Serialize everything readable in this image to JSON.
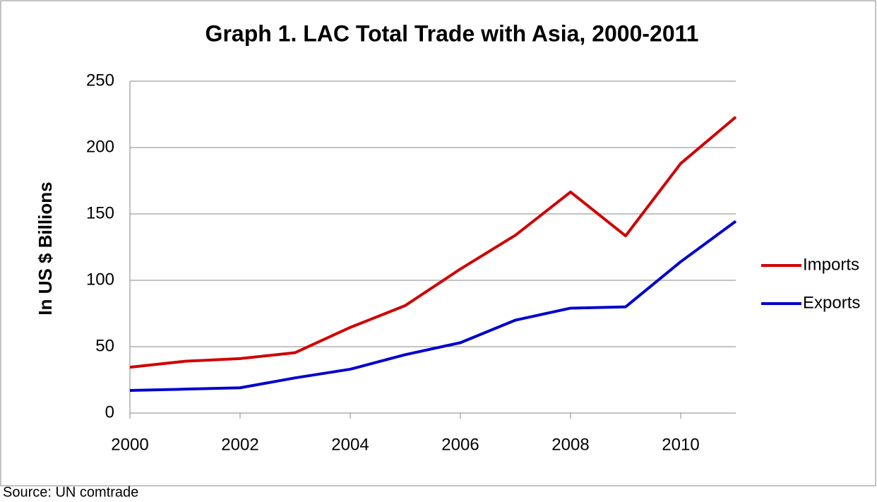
{
  "chart_data": {
    "type": "line",
    "title": "Graph 1. LAC Total Trade with Asia, 2000-2011",
    "y_label": "In US $ Billions",
    "source": "Source: UN comtrade",
    "x": [
      2000,
      2001,
      2002,
      2003,
      2004,
      2005,
      2006,
      2007,
      2008,
      2009,
      2010,
      2011
    ],
    "series": [
      {
        "name": "Imports",
        "color": "#d00000",
        "values": [
          34.5,
          39,
          41,
          45.5,
          64.5,
          81,
          108.5,
          134,
          166.5,
          133.5,
          188,
          223
        ]
      },
      {
        "name": "Exports",
        "color": "#0000cc",
        "values": [
          17,
          18,
          19,
          26.5,
          33,
          44,
          53,
          70,
          79,
          80,
          114,
          144.5
        ]
      }
    ],
    "xlim": [
      2000,
      2011
    ],
    "xticks": [
      2000,
      2002,
      2004,
      2006,
      2008,
      2010
    ],
    "ylim": [
      0,
      250
    ],
    "yticks": [
      0,
      50,
      100,
      150,
      200,
      250
    ],
    "grid": true,
    "legend": "right"
  }
}
